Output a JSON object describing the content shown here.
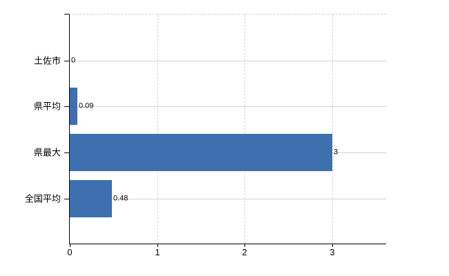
{
  "chart_data": {
    "type": "bar",
    "orientation": "horizontal",
    "title": "",
    "categories": [
      "土佐市",
      "県平均",
      "県最大",
      "全国平均"
    ],
    "values": [
      0,
      0.09,
      3,
      0.48
    ],
    "value_labels": [
      "0",
      "0.09",
      "3",
      "0.48"
    ],
    "x_ticks": [
      0,
      1,
      2,
      3
    ],
    "x_tick_labels": [
      "0",
      "1",
      "2",
      "3"
    ],
    "xlim": [
      0,
      3.62
    ],
    "grid": "on",
    "legend": "none",
    "colors": {
      "bar": "#3e70af",
      "axis": "#000000",
      "gridline_horizontal": "#ccd5cb",
      "gridline_vertical": "#d2d2d2",
      "text": "#000000",
      "background": "#ffffff"
    }
  }
}
